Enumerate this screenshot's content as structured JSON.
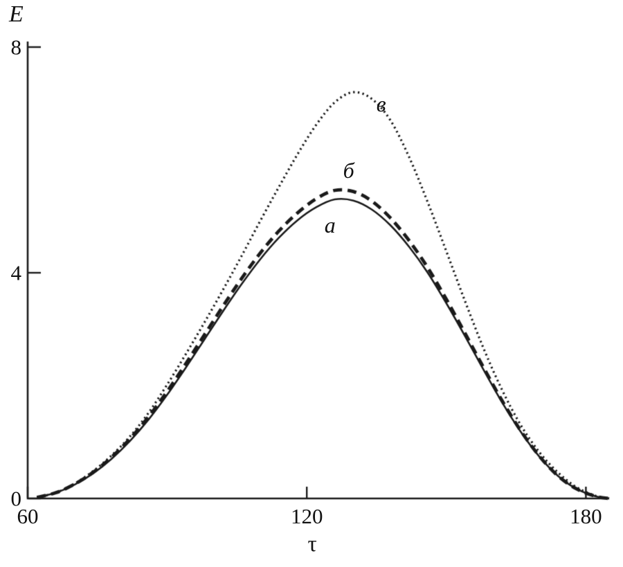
{
  "figure": {
    "background": "#ffffff",
    "line_color": "#1a1a1a"
  },
  "chart_data": {
    "type": "line",
    "title": "",
    "xlabel": "τ",
    "ylabel": "E",
    "xlim": [
      60,
      185
    ],
    "ylim": [
      0,
      8
    ],
    "x_ticks": [
      60,
      120,
      180
    ],
    "x_tick_labels": [
      "60",
      "120",
      "180"
    ],
    "y_ticks": [
      0,
      4,
      8
    ],
    "y_tick_labels": [
      "0",
      "4",
      "8"
    ],
    "grid": false,
    "legend": "inline-curve-labels",
    "x": [
      62,
      66,
      70,
      74,
      78,
      82,
      86,
      90,
      94,
      98,
      102,
      106,
      110,
      114,
      118,
      122,
      126,
      130,
      134,
      138,
      142,
      146,
      150,
      154,
      158,
      162,
      166,
      170,
      174,
      178,
      182,
      185
    ],
    "series": [
      {
        "name": "a",
        "style": "solid",
        "label_pos": {
          "x": 125,
          "y": 4.85
        },
        "values": [
          0.02,
          0.1,
          0.24,
          0.44,
          0.7,
          1.02,
          1.4,
          1.84,
          2.32,
          2.82,
          3.32,
          3.8,
          4.24,
          4.62,
          4.93,
          5.16,
          5.3,
          5.28,
          5.12,
          4.84,
          4.46,
          4.0,
          3.46,
          2.88,
          2.28,
          1.7,
          1.18,
          0.74,
          0.4,
          0.17,
          0.04,
          0.0
        ]
      },
      {
        "name": "б",
        "style": "dashed",
        "label_pos": {
          "x": 129,
          "y": 5.82
        },
        "values": [
          0.02,
          0.1,
          0.25,
          0.46,
          0.73,
          1.06,
          1.45,
          1.9,
          2.39,
          2.9,
          3.41,
          3.9,
          4.35,
          4.74,
          5.06,
          5.31,
          5.46,
          5.44,
          5.27,
          4.97,
          4.57,
          4.09,
          3.53,
          2.93,
          2.32,
          1.73,
          1.2,
          0.75,
          0.4,
          0.17,
          0.04,
          0.0
        ]
      },
      {
        "name": "в",
        "style": "dotted",
        "label_pos": {
          "x": 136,
          "y": 7.0
        },
        "values": [
          0.02,
          0.1,
          0.26,
          0.48,
          0.76,
          1.1,
          1.52,
          2.02,
          2.56,
          3.12,
          3.7,
          4.3,
          4.92,
          5.52,
          6.1,
          6.62,
          7.02,
          7.2,
          7.08,
          6.7,
          6.05,
          5.25,
          4.38,
          3.5,
          2.66,
          1.92,
          1.3,
          0.82,
          0.46,
          0.2,
          0.05,
          0.0
        ]
      }
    ]
  }
}
